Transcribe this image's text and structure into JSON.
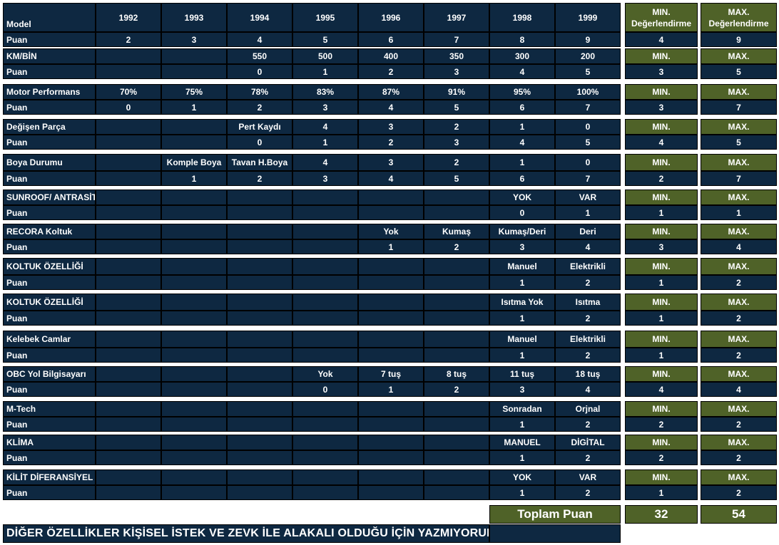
{
  "years": [
    "1992",
    "1993",
    "1994",
    "1995",
    "1996",
    "1997",
    "1998",
    "1999"
  ],
  "header": {
    "model_label": "Model",
    "min_line1": "MIN.",
    "min_line2": "Değerlendirme",
    "max_line1": "MAX.",
    "max_line2": "Değerlendirme"
  },
  "sections": [
    {
      "label": "Model",
      "values": [
        "",
        "",
        "",
        "",
        "",
        "",
        "",
        ""
      ],
      "puan": [
        "2",
        "3",
        "4",
        "5",
        "6",
        "7",
        "8",
        "9"
      ],
      "min": "4",
      "max": "9",
      "min_header": "",
      "max_header": ""
    },
    {
      "label": "KM/BİN",
      "values": [
        "",
        "",
        "550",
        "500",
        "400",
        "350",
        "300",
        "200"
      ],
      "puan": [
        "",
        "",
        "0",
        "1",
        "2",
        "3",
        "4",
        "5"
      ],
      "min": "3",
      "max": "5",
      "min_header": "MIN.",
      "max_header": "MAX."
    },
    {
      "label": "Motor Performans",
      "values": [
        "70%",
        "75%",
        "78%",
        "83%",
        "87%",
        "91%",
        "95%",
        "100%"
      ],
      "puan": [
        "0",
        "1",
        "2",
        "3",
        "4",
        "5",
        "6",
        "7"
      ],
      "min": "3",
      "max": "7",
      "min_header": "MIN.",
      "max_header": "MAX."
    },
    {
      "label": "Değişen Parça",
      "values": [
        "",
        "",
        "Pert Kaydı",
        "4",
        "3",
        "2",
        "1",
        "0"
      ],
      "puan": [
        "",
        "",
        "0",
        "1",
        "2",
        "3",
        "4",
        "5"
      ],
      "min": "4",
      "max": "5",
      "min_header": "MIN.",
      "max_header": "MAX."
    },
    {
      "label": "Boya Durumu",
      "values": [
        "",
        "Komple Boya",
        "Tavan H.Boya",
        "4",
        "3",
        "2",
        "1",
        "0"
      ],
      "puan": [
        "",
        "1",
        "2",
        "3",
        "4",
        "5",
        "6",
        "7"
      ],
      "min": "2",
      "max": "7",
      "min_header": "MIN.",
      "max_header": "MAX."
    },
    {
      "label": "SUNROOF/ ANTRASİT",
      "values": [
        "",
        "",
        "",
        "",
        "",
        "",
        "YOK",
        "VAR"
      ],
      "puan": [
        "",
        "",
        "",
        "",
        "",
        "",
        "0",
        "1"
      ],
      "min": "1",
      "max": "1",
      "min_header": "MIN.",
      "max_header": "MAX."
    },
    {
      "label": "RECORA Koltuk",
      "values": [
        "",
        "",
        "",
        "",
        "Yok",
        "Kumaş",
        "Kumaş/Deri",
        "Deri"
      ],
      "puan": [
        "",
        "",
        "",
        "",
        "1",
        "2",
        "3",
        "4"
      ],
      "min": "3",
      "max": "4",
      "min_header": "MIN.",
      "max_header": "MAX."
    },
    {
      "label": "KOLTUK ÖZELLİĞİ",
      "values": [
        "",
        "",
        "",
        "",
        "",
        "",
        "Manuel",
        "Elektrikli"
      ],
      "puan": [
        "",
        "",
        "",
        "",
        "",
        "",
        "1",
        "2"
      ],
      "min": "1",
      "max": "2",
      "min_header": "MIN.",
      "max_header": "MAX."
    },
    {
      "label": "KOLTUK ÖZELLİĞİ",
      "values": [
        "",
        "",
        "",
        "",
        "",
        "",
        "Isıtma Yok",
        "Isıtma"
      ],
      "puan": [
        "",
        "",
        "",
        "",
        "",
        "",
        "1",
        "2"
      ],
      "min": "1",
      "max": "2",
      "min_header": "MIN.",
      "max_header": "MAX."
    },
    {
      "label": "Kelebek Camlar",
      "values": [
        "",
        "",
        "",
        "",
        "",
        "",
        "Manuel",
        "Elektrikli"
      ],
      "puan": [
        "",
        "",
        "",
        "",
        "",
        "",
        "1",
        "2"
      ],
      "min": "1",
      "max": "2",
      "min_header": "MIN.",
      "max_header": "MAX."
    },
    {
      "label": "OBC Yol Bilgisayarı",
      "values": [
        "",
        "",
        "",
        "Yok",
        "7 tuş",
        "8 tuş",
        "11 tuş",
        "18 tuş"
      ],
      "puan": [
        "",
        "",
        "",
        "0",
        "1",
        "2",
        "3",
        "4"
      ],
      "min": "4",
      "max": "4",
      "min_header": "MIN.",
      "max_header": "MAX."
    },
    {
      "label": "M-Tech",
      "values": [
        "",
        "",
        "",
        "",
        "",
        "",
        "Sonradan",
        "Orjnal"
      ],
      "puan": [
        "",
        "",
        "",
        "",
        "",
        "",
        "1",
        "2"
      ],
      "min": "2",
      "max": "2",
      "min_header": "MIN.",
      "max_header": "MAX."
    },
    {
      "label": "KLİMA",
      "values": [
        "",
        "",
        "",
        "",
        "",
        "",
        "MANUEL",
        "DİGİTAL"
      ],
      "puan": [
        "",
        "",
        "",
        "",
        "",
        "",
        "1",
        "2"
      ],
      "min": "2",
      "max": "2",
      "min_header": "MIN.",
      "max_header": "MAX."
    },
    {
      "label": "KİLİT DİFERANSİYEL",
      "values": [
        "",
        "",
        "",
        "",
        "",
        "",
        "YOK",
        "VAR"
      ],
      "puan": [
        "",
        "",
        "",
        "",
        "",
        "",
        "1",
        "2"
      ],
      "min": "1",
      "max": "2",
      "min_header": "MIN.",
      "max_header": "MAX."
    }
  ],
  "puan_label": "Puan",
  "footer": {
    "total_label": "Toplam Puan",
    "total_min": "32",
    "total_max": "54",
    "note": "DİĞER ÖZELLİKLER KİŞİSEL İSTEK VE ZEVK İLE ALAKALI OLDUĞU İÇİN YAZMIYORUM.."
  },
  "colors": {
    "cell_bg": "#0e2841",
    "accent_green": "#4f6228",
    "text": "#ffffff"
  }
}
